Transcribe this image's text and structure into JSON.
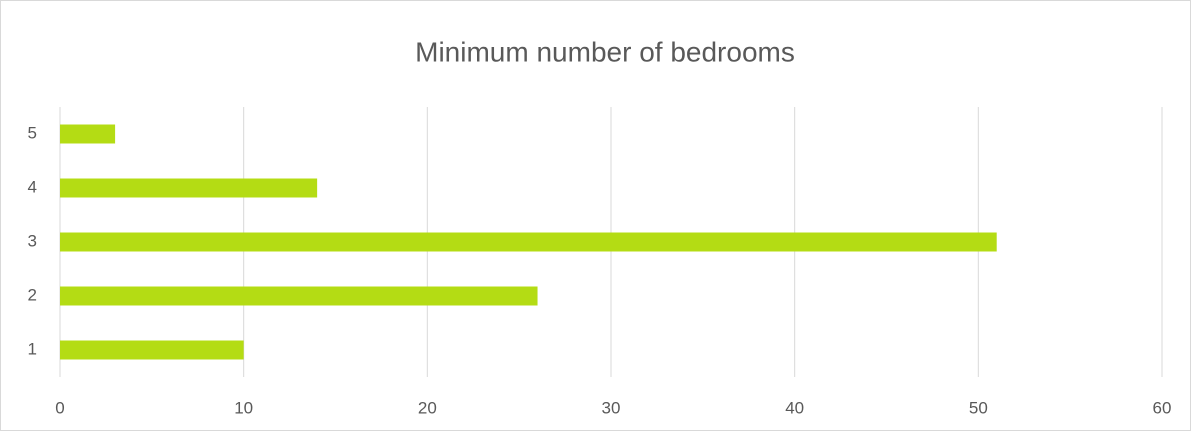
{
  "chart_data": {
    "type": "bar",
    "orientation": "horizontal",
    "title": "Minimum number of bedrooms",
    "categories": [
      "1",
      "2",
      "3",
      "4",
      "5"
    ],
    "values": [
      10,
      26,
      51,
      14,
      3
    ],
    "color": "#b4dc14",
    "xlim": [
      0,
      60
    ],
    "xticks": [
      0,
      10,
      20,
      30,
      40,
      50,
      60
    ],
    "grid": true
  }
}
